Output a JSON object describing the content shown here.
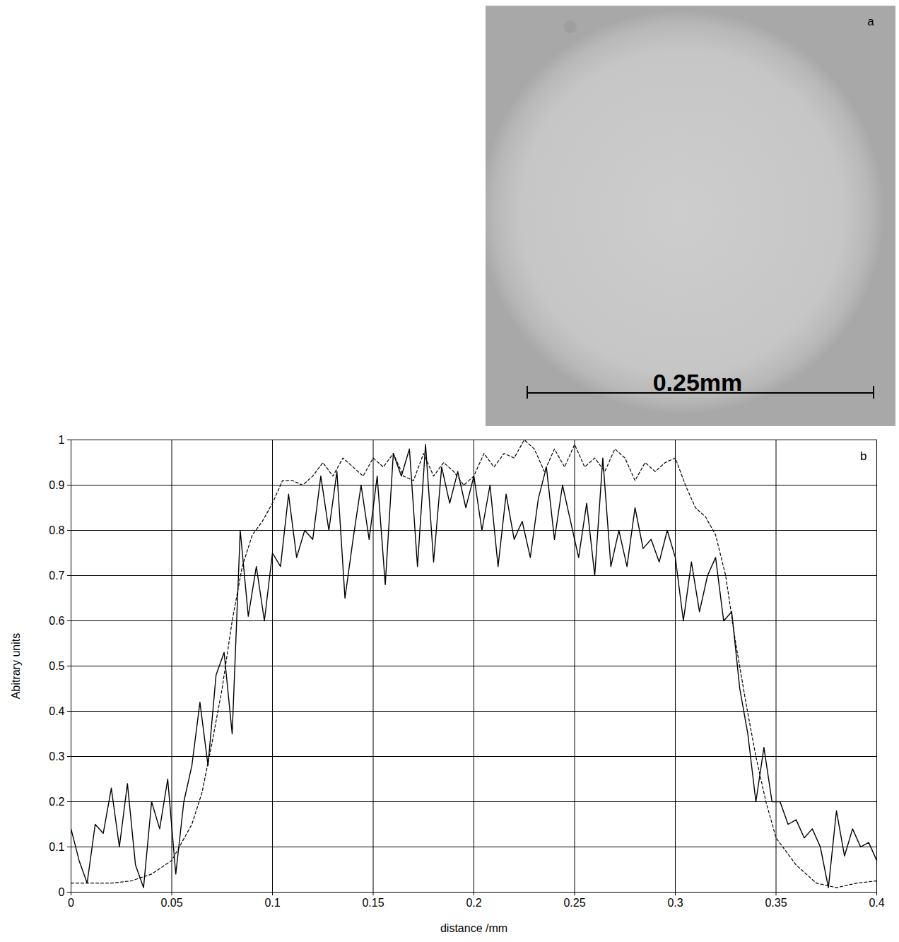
{
  "panel_a": {
    "letter": "a",
    "scale_bar_label": "0.25mm"
  },
  "chart_data": {
    "type": "line",
    "letter": "b",
    "x_label": "distance /mm",
    "y_label": "Abitrary units",
    "xlim": [
      0,
      0.4
    ],
    "ylim": [
      0,
      1
    ],
    "xticks": [
      0,
      0.05,
      0.1,
      0.15,
      0.2,
      0.25,
      0.3,
      0.35,
      0.4
    ],
    "yticks": [
      0,
      0.1,
      0.2,
      0.3,
      0.4,
      0.5,
      0.6,
      0.7,
      0.8,
      0.9,
      1
    ],
    "grid": true,
    "series": [
      {
        "color": "#000000",
        "line_style": "solid",
        "x": [
          0,
          0.004,
          0.008,
          0.012,
          0.016,
          0.02,
          0.024,
          0.028,
          0.032,
          0.036,
          0.04,
          0.044,
          0.048,
          0.052,
          0.056,
          0.06,
          0.064,
          0.068,
          0.072,
          0.076,
          0.08,
          0.084,
          0.088,
          0.092,
          0.096,
          0.1,
          0.104,
          0.108,
          0.112,
          0.116,
          0.12,
          0.124,
          0.128,
          0.132,
          0.136,
          0.14,
          0.144,
          0.148,
          0.152,
          0.156,
          0.16,
          0.164,
          0.168,
          0.172,
          0.176,
          0.18,
          0.184,
          0.188,
          0.192,
          0.196,
          0.2,
          0.204,
          0.208,
          0.212,
          0.216,
          0.22,
          0.224,
          0.228,
          0.232,
          0.236,
          0.24,
          0.244,
          0.248,
          0.252,
          0.256,
          0.26,
          0.264,
          0.268,
          0.272,
          0.276,
          0.28,
          0.284,
          0.288,
          0.292,
          0.296,
          0.3,
          0.304,
          0.308,
          0.312,
          0.316,
          0.32,
          0.324,
          0.328,
          0.332,
          0.336,
          0.34,
          0.344,
          0.348,
          0.352,
          0.356,
          0.36,
          0.364,
          0.368,
          0.372,
          0.376,
          0.38,
          0.384,
          0.388,
          0.392,
          0.396,
          0.4
        ],
        "values": [
          0.14,
          0.07,
          0.02,
          0.15,
          0.13,
          0.23,
          0.1,
          0.24,
          0.06,
          0.01,
          0.2,
          0.14,
          0.25,
          0.04,
          0.2,
          0.28,
          0.42,
          0.28,
          0.48,
          0.53,
          0.35,
          0.8,
          0.61,
          0.72,
          0.6,
          0.75,
          0.72,
          0.88,
          0.74,
          0.8,
          0.78,
          0.92,
          0.8,
          0.93,
          0.65,
          0.78,
          0.9,
          0.78,
          0.92,
          0.68,
          0.97,
          0.92,
          0.98,
          0.72,
          0.99,
          0.73,
          0.94,
          0.86,
          0.93,
          0.85,
          0.92,
          0.8,
          0.9,
          0.72,
          0.88,
          0.78,
          0.82,
          0.74,
          0.87,
          0.94,
          0.78,
          0.9,
          0.82,
          0.74,
          0.86,
          0.7,
          0.96,
          0.72,
          0.8,
          0.72,
          0.85,
          0.76,
          0.78,
          0.73,
          0.8,
          0.74,
          0.6,
          0.73,
          0.62,
          0.7,
          0.74,
          0.6,
          0.62,
          0.45,
          0.35,
          0.2,
          0.32,
          0.2,
          0.2,
          0.15,
          0.16,
          0.12,
          0.14,
          0.1,
          0.01,
          0.18,
          0.08,
          0.14,
          0.1,
          0.11,
          0.07
        ]
      },
      {
        "color": "#000000",
        "line_style": "dashed",
        "x": [
          0,
          0.01,
          0.02,
          0.03,
          0.04,
          0.05,
          0.06,
          0.065,
          0.07,
          0.075,
          0.08,
          0.085,
          0.09,
          0.095,
          0.1,
          0.105,
          0.11,
          0.115,
          0.12,
          0.125,
          0.13,
          0.135,
          0.14,
          0.145,
          0.15,
          0.155,
          0.16,
          0.165,
          0.17,
          0.175,
          0.18,
          0.185,
          0.19,
          0.195,
          0.2,
          0.205,
          0.21,
          0.215,
          0.22,
          0.225,
          0.23,
          0.235,
          0.24,
          0.245,
          0.25,
          0.255,
          0.26,
          0.265,
          0.27,
          0.275,
          0.28,
          0.285,
          0.29,
          0.295,
          0.3,
          0.305,
          0.31,
          0.315,
          0.32,
          0.325,
          0.33,
          0.335,
          0.34,
          0.345,
          0.35,
          0.36,
          0.37,
          0.38,
          0.39,
          0.4
        ],
        "values": [
          0.02,
          0.02,
          0.02,
          0.025,
          0.04,
          0.07,
          0.15,
          0.22,
          0.33,
          0.45,
          0.6,
          0.72,
          0.79,
          0.82,
          0.86,
          0.91,
          0.91,
          0.9,
          0.92,
          0.95,
          0.92,
          0.96,
          0.94,
          0.92,
          0.96,
          0.94,
          0.97,
          0.92,
          0.91,
          0.97,
          0.92,
          0.95,
          0.93,
          0.9,
          0.92,
          0.97,
          0.94,
          0.97,
          0.96,
          1.0,
          0.98,
          0.93,
          0.98,
          0.94,
          0.99,
          0.94,
          0.96,
          0.93,
          0.98,
          0.96,
          0.91,
          0.95,
          0.93,
          0.95,
          0.96,
          0.9,
          0.85,
          0.83,
          0.79,
          0.7,
          0.55,
          0.42,
          0.3,
          0.2,
          0.12,
          0.06,
          0.02,
          0.01,
          0.02,
          0.025
        ]
      }
    ]
  }
}
